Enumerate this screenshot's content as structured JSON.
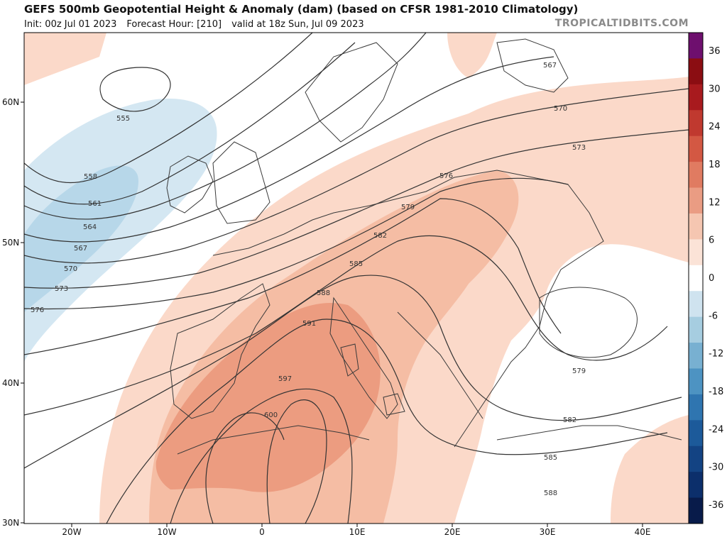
{
  "header": {
    "title": "GEFS 500mb Geopotential Height & Anomaly (dam) (based on CFSR 1981-2010 Climatology)",
    "init": "Init: 00z Jul 01 2023",
    "forecast_hour": "Forecast Hour: [210]",
    "valid": "valid at 18z Sun, Jul 09 2023",
    "brand": "TROPICALTIDBITS.COM"
  },
  "axes": {
    "lat_labels": [
      "60N",
      "50N",
      "40N",
      "30N"
    ],
    "lon_labels": [
      "20W",
      "10W",
      "0",
      "10E",
      "20E",
      "30E",
      "40E"
    ]
  },
  "contour_labels": [
    "555",
    "558",
    "561",
    "564",
    "567",
    "570",
    "573",
    "576",
    "579",
    "582",
    "585",
    "588",
    "591",
    "597",
    "600",
    "567",
    "570",
    "573",
    "576",
    "579",
    "582",
    "585",
    "588"
  ],
  "colorbar": {
    "ticks": [
      "36",
      "30",
      "24",
      "18",
      "12",
      "6",
      "0",
      "-6",
      "-12",
      "-18",
      "-24",
      "-30",
      "-36"
    ],
    "colors": [
      "#6e0f6e",
      "#8b0d12",
      "#a81a1e",
      "#c0392f",
      "#d35843",
      "#e07b61",
      "#ea9c83",
      "#f5c6b1",
      "#fbe3d7",
      "#ffffff",
      "#cfe3ef",
      "#a6cde0",
      "#78b0d1",
      "#4d93c2",
      "#2f75b0",
      "#1c5a9a",
      "#134383",
      "#0c2f6b",
      "#081b4a"
    ]
  },
  "colors": {
    "anomaly_light": "#fbd9c9",
    "anomaly_medium": "#f5bda4",
    "anomaly_strong": "#ec9c80",
    "negative_light": "#d4e7f2",
    "negative_medium": "#b7d7e9",
    "contour": "#333333",
    "land_border": "#3a3a3a"
  }
}
